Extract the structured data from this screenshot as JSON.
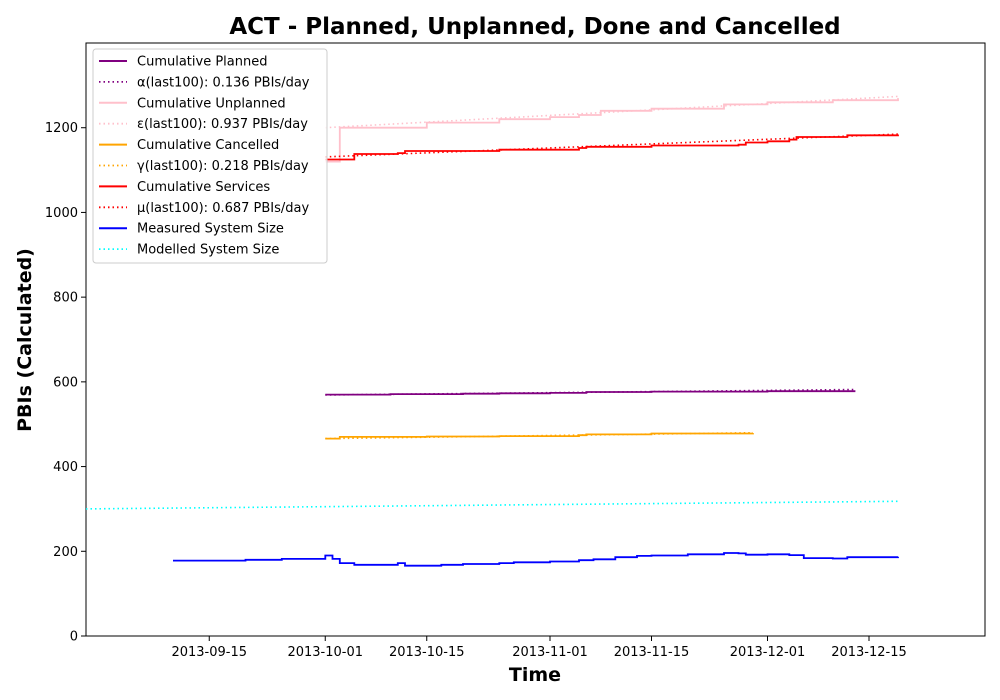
{
  "chart_data": {
    "type": "line",
    "title": "ACT - Planned, Unplanned, Done  and Cancelled",
    "xlabel": "Time",
    "ylabel": "PBIs (Calculated)",
    "xlim": [
      "2013-08-29",
      "2013-12-31"
    ],
    "ylim": [
      0,
      1400
    ],
    "x_ticks": [
      "2013-09-15",
      "2013-10-01",
      "2013-10-15",
      "2013-11-01",
      "2013-11-15",
      "2013-12-01",
      "2013-12-15"
    ],
    "y_ticks": [
      0,
      200,
      400,
      600,
      800,
      1000,
      1200
    ],
    "grid": false,
    "legend_position": "upper-left",
    "series": [
      {
        "name": "Cumulative Planned",
        "style": "solid",
        "color": "#800080",
        "points": [
          [
            "2013-10-01",
            570
          ],
          [
            "2013-10-10",
            571
          ],
          [
            "2013-10-20",
            572
          ],
          [
            "2013-10-25",
            573
          ],
          [
            "2013-11-01",
            574
          ],
          [
            "2013-11-06",
            576
          ],
          [
            "2013-11-15",
            577
          ],
          [
            "2013-12-01",
            578
          ],
          [
            "2013-12-13",
            580
          ]
        ]
      },
      {
        "name": "α(last100): 0.136 PBIs/day",
        "style": "dotted",
        "color": "#800080",
        "points": [
          [
            "2013-10-01",
            569
          ],
          [
            "2013-12-13",
            582
          ]
        ]
      },
      {
        "name": "Cumulative Unplanned",
        "style": "solid",
        "color": "#ffc0cb",
        "points": [
          [
            "2013-10-01",
            1120
          ],
          [
            "2013-10-03",
            1200
          ],
          [
            "2013-10-15",
            1212
          ],
          [
            "2013-10-25",
            1220
          ],
          [
            "2013-11-01",
            1225
          ],
          [
            "2013-11-05",
            1230
          ],
          [
            "2013-11-08",
            1240
          ],
          [
            "2013-11-15",
            1245
          ],
          [
            "2013-11-25",
            1255
          ],
          [
            "2013-12-01",
            1260
          ],
          [
            "2013-12-10",
            1265
          ],
          [
            "2013-12-19",
            1270
          ]
        ]
      },
      {
        "name": "ε(last100): 0.937 PBIs/day",
        "style": "dotted",
        "color": "#ffc0cb",
        "points": [
          [
            "2013-10-01",
            1200
          ],
          [
            "2013-12-19",
            1274
          ]
        ]
      },
      {
        "name": "Cumulative Cancelled",
        "style": "solid",
        "color": "#ffa500",
        "points": [
          [
            "2013-10-01",
            466
          ],
          [
            "2013-10-03",
            470
          ],
          [
            "2013-10-15",
            471
          ],
          [
            "2013-10-25",
            472
          ],
          [
            "2013-11-05",
            474
          ],
          [
            "2013-11-06",
            476
          ],
          [
            "2013-11-15",
            478
          ],
          [
            "2013-11-29",
            479
          ]
        ]
      },
      {
        "name": "γ(last100): 0.218 PBIs/day",
        "style": "dotted",
        "color": "#ffa500",
        "points": [
          [
            "2013-10-01",
            466
          ],
          [
            "2013-11-29",
            480
          ]
        ]
      },
      {
        "name": "Cumulative Services",
        "style": "solid",
        "color": "#ff0000",
        "points": [
          [
            "2013-10-01",
            1125
          ],
          [
            "2013-10-05",
            1138
          ],
          [
            "2013-10-11",
            1140
          ],
          [
            "2013-10-12",
            1145
          ],
          [
            "2013-10-25",
            1148
          ],
          [
            "2013-11-05",
            1152
          ],
          [
            "2013-11-06",
            1155
          ],
          [
            "2013-11-15",
            1158
          ],
          [
            "2013-11-27",
            1160
          ],
          [
            "2013-11-28",
            1165
          ],
          [
            "2013-12-01",
            1168
          ],
          [
            "2013-12-04",
            1172
          ],
          [
            "2013-12-05",
            1178
          ],
          [
            "2013-12-12",
            1182
          ],
          [
            "2013-12-19",
            1184
          ]
        ]
      },
      {
        "name": "μ(last100): 0.687 PBIs/day",
        "style": "dotted",
        "color": "#ff0000",
        "points": [
          [
            "2013-10-01",
            1131
          ],
          [
            "2013-12-19",
            1185
          ]
        ]
      },
      {
        "name": "Measured System Size",
        "style": "solid",
        "color": "#0000ff",
        "points": [
          [
            "2013-09-10",
            178
          ],
          [
            "2013-09-20",
            180
          ],
          [
            "2013-09-25",
            182
          ],
          [
            "2013-10-01",
            185
          ],
          [
            "2013-10-01",
            190
          ],
          [
            "2013-10-02",
            182
          ],
          [
            "2013-10-03",
            172
          ],
          [
            "2013-10-05",
            168
          ],
          [
            "2013-10-11",
            172
          ],
          [
            "2013-10-12",
            166
          ],
          [
            "2013-10-17",
            168
          ],
          [
            "2013-10-20",
            170
          ],
          [
            "2013-10-25",
            172
          ],
          [
            "2013-10-27",
            174
          ],
          [
            "2013-11-01",
            176
          ],
          [
            "2013-11-05",
            179
          ],
          [
            "2013-11-07",
            181
          ],
          [
            "2013-11-10",
            186
          ],
          [
            "2013-11-13",
            189
          ],
          [
            "2013-11-15",
            190
          ],
          [
            "2013-11-20",
            193
          ],
          [
            "2013-11-25",
            196
          ],
          [
            "2013-11-27",
            195
          ],
          [
            "2013-11-28",
            192
          ],
          [
            "2013-12-01",
            193
          ],
          [
            "2013-12-04",
            191
          ],
          [
            "2013-12-06",
            184
          ],
          [
            "2013-12-10",
            183
          ],
          [
            "2013-12-12",
            186
          ],
          [
            "2013-12-19",
            187
          ]
        ]
      },
      {
        "name": "Modelled System Size",
        "style": "dotted",
        "color": "#00ffff",
        "points": [
          [
            "2013-08-29",
            300
          ],
          [
            "2013-12-19",
            318
          ]
        ]
      }
    ]
  }
}
